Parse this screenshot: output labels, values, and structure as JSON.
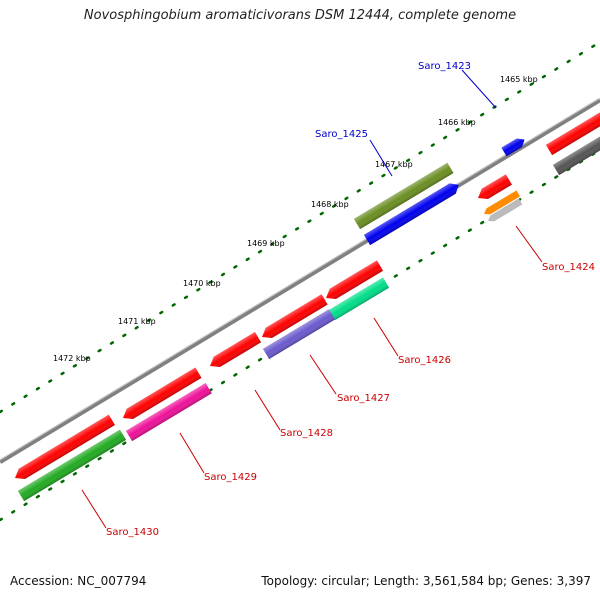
{
  "title": "Novosphingobium aromaticivorans DSM 12444, complete genome",
  "footer": {
    "accession": "Accession: NC_007794",
    "summary": "Topology: circular; Length: 3,561,584 bp; Genes: 3,397"
  },
  "ticks": [
    {
      "label": "1465 kbp"
    },
    {
      "label": "1466 kbp"
    },
    {
      "label": "1467 kbp"
    },
    {
      "label": "1468 kbp"
    },
    {
      "label": "1469 kbp"
    },
    {
      "label": "1470 kbp"
    },
    {
      "label": "1471 kbp"
    },
    {
      "label": "1472 kbp"
    }
  ],
  "genes": [
    {
      "name": "Saro_1423",
      "strand": "forward",
      "color": "#0000ee",
      "label_color": "#0000cc"
    },
    {
      "name": "Saro_1425",
      "strand": "forward",
      "color": "#0000ee",
      "label_color": "#0000cc"
    },
    {
      "name": "Saro_1424",
      "strand": "reverse",
      "color": "#ff0000",
      "label_color": "#cc0000"
    },
    {
      "name": "Saro_1426",
      "strand": "reverse",
      "color": "#ff0000",
      "label_color": "#cc0000"
    },
    {
      "name": "Saro_1427",
      "strand": "reverse",
      "color": "#ff0000",
      "label_color": "#cc0000"
    },
    {
      "name": "Saro_1428",
      "strand": "reverse",
      "color": "#ff0000",
      "label_color": "#cc0000"
    },
    {
      "name": "Saro_1429",
      "strand": "reverse",
      "color": "#ff0000",
      "label_color": "#cc0000"
    },
    {
      "name": "Saro_1430",
      "strand": "reverse",
      "color": "#ff0000",
      "label_color": "#cc0000"
    }
  ],
  "feature_colors": {
    "cds": "#ff0000",
    "olive_feature": "#6b8e23",
    "blue_feature": "#0000ee",
    "orange_feature": "#ff8c00",
    "grey_feature": "#bbbbbb",
    "darkgrey_feature": "#555555",
    "mint_feature": "#00dd88",
    "purple_feature": "#6a5acd",
    "magenta_feature": "#ee1199",
    "green_feature": "#22aa22",
    "backbone": "#808080",
    "tick_dots": "#006600"
  }
}
